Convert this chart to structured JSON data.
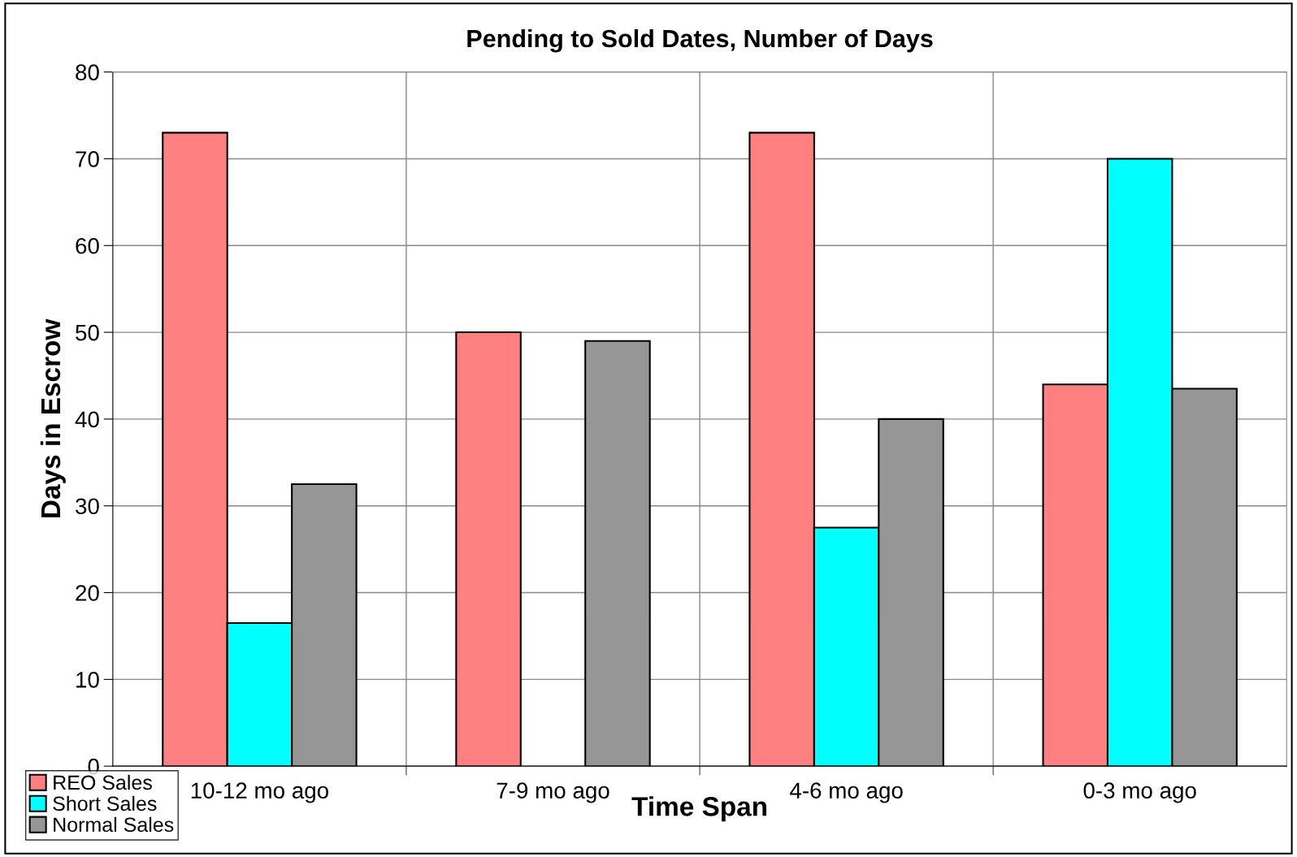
{
  "chart_data": {
    "type": "bar",
    "title": "Pending to Sold Dates, Number of Days",
    "xlabel": "Time Span",
    "ylabel": "Days in Escrow",
    "categories": [
      "10-12 mo ago",
      "7-9 mo ago",
      "4-6 mo ago",
      "0-3 mo ago"
    ],
    "series": [
      {
        "name": "REO Sales",
        "color": "#ff8080",
        "values": [
          73,
          50,
          73,
          44
        ]
      },
      {
        "name": "Short Sales",
        "color": "#00ffff",
        "values": [
          16.5,
          null,
          27.5,
          70
        ]
      },
      {
        "name": "Normal Sales",
        "color": "#969696",
        "values": [
          32.5,
          49,
          40,
          43.5
        ]
      }
    ],
    "ylim": [
      0,
      80
    ],
    "yticks": [
      0,
      10,
      20,
      30,
      40,
      50,
      60,
      70,
      80
    ],
    "grid": true,
    "legend": "bottom left"
  }
}
